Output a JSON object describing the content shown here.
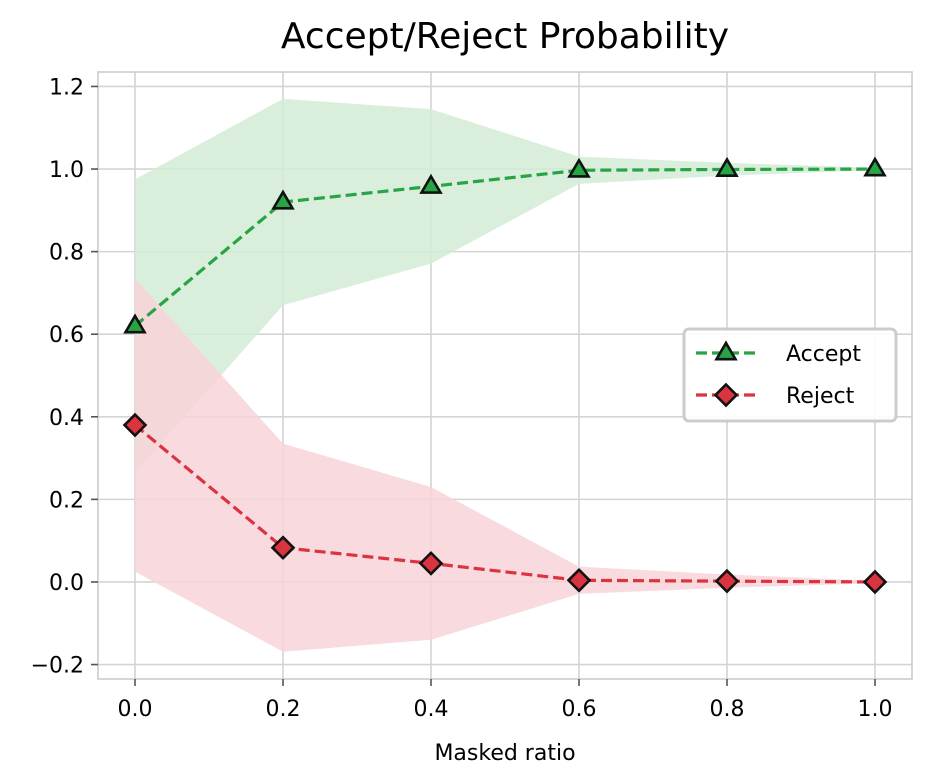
{
  "chart_data": {
    "type": "line",
    "title": "Accept/Reject Probability",
    "xlabel": "Masked ratio",
    "ylabel": "",
    "x": [
      0.0,
      0.2,
      0.4,
      0.6,
      0.8,
      1.0
    ],
    "xlim": [
      -0.05,
      1.05
    ],
    "ylim": [
      -0.235,
      1.235
    ],
    "xticks": [
      0.0,
      0.2,
      0.4,
      0.6,
      0.8,
      1.0
    ],
    "xtick_labels": [
      "0.0",
      "0.2",
      "0.4",
      "0.6",
      "0.8",
      "1.0"
    ],
    "yticks": [
      -0.2,
      0.0,
      0.2,
      0.4,
      0.6,
      0.8,
      1.0,
      1.2
    ],
    "ytick_labels": [
      "−0.2",
      "0.0",
      "0.2",
      "0.4",
      "0.6",
      "0.8",
      "1.0",
      "1.2"
    ],
    "grid": true,
    "legend": "center-right",
    "series": [
      {
        "name": "Accept",
        "values": [
          0.62,
          0.92,
          0.958,
          0.997,
          0.999,
          1.0
        ],
        "band_upper": [
          0.975,
          1.17,
          1.145,
          1.03,
          1.015,
          1.003
        ],
        "band_lower": [
          0.265,
          0.67,
          0.771,
          0.964,
          0.984,
          0.997
        ],
        "color": "#27a444",
        "band_color": "#d2ecd6",
        "marker": "triangle",
        "line_style": "dashed"
      },
      {
        "name": "Reject",
        "values": [
          0.38,
          0.083,
          0.045,
          0.004,
          0.002,
          0.0
        ],
        "band_upper": [
          0.735,
          0.335,
          0.23,
          0.037,
          0.018,
          0.003
        ],
        "band_lower": [
          0.025,
          -0.169,
          -0.14,
          -0.029,
          -0.014,
          -0.003
        ],
        "color": "#da3441",
        "band_color": "#f8d3d8",
        "marker": "diamond",
        "line_style": "dashed"
      }
    ]
  }
}
